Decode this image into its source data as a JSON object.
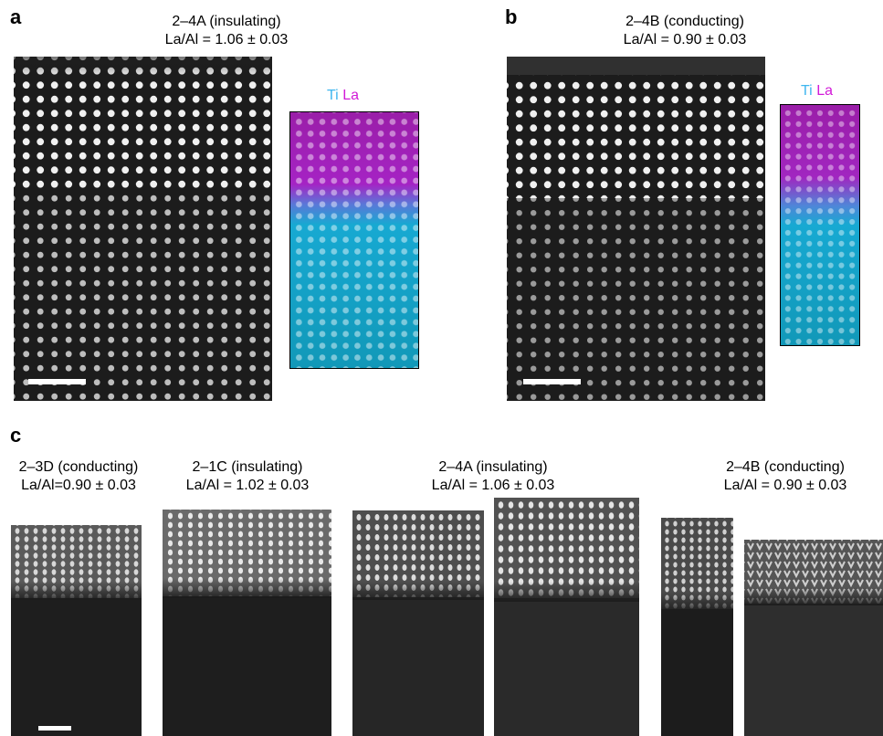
{
  "panel_a": {
    "letter": "a",
    "caption_line1": "2–4A (insulating)",
    "caption_line2": "La/Al = 1.06 ± 0.03",
    "map_label_ti": "Ti",
    "map_label_la": "La"
  },
  "panel_b": {
    "letter": "b",
    "caption_line1": "2–4B (conducting)",
    "caption_line2": "La/Al = 0.90 ± 0.03",
    "map_label_ti": "Ti",
    "map_label_la": "La"
  },
  "panel_c": {
    "letter": "c",
    "samples": [
      {
        "line1": "2–3D (conducting)",
        "line2": "La/Al=0.90 ± 0.03"
      },
      {
        "line1": "2–1C (insulating)",
        "line2": "La/Al = 1.02 ± 0.03"
      },
      {
        "line1": "2–4A (insulating)",
        "line2": "La/Al = 1.06 ± 0.03"
      },
      {
        "line1": "2–4B (conducting)",
        "line2": "La/Al = 0.90 ± 0.03"
      }
    ]
  },
  "colors": {
    "ti_cyan": "#3fb6ef",
    "la_magenta": "#d21ad8",
    "stem_background": "#1c1c1c",
    "atom_column": "#f0f0f0"
  }
}
